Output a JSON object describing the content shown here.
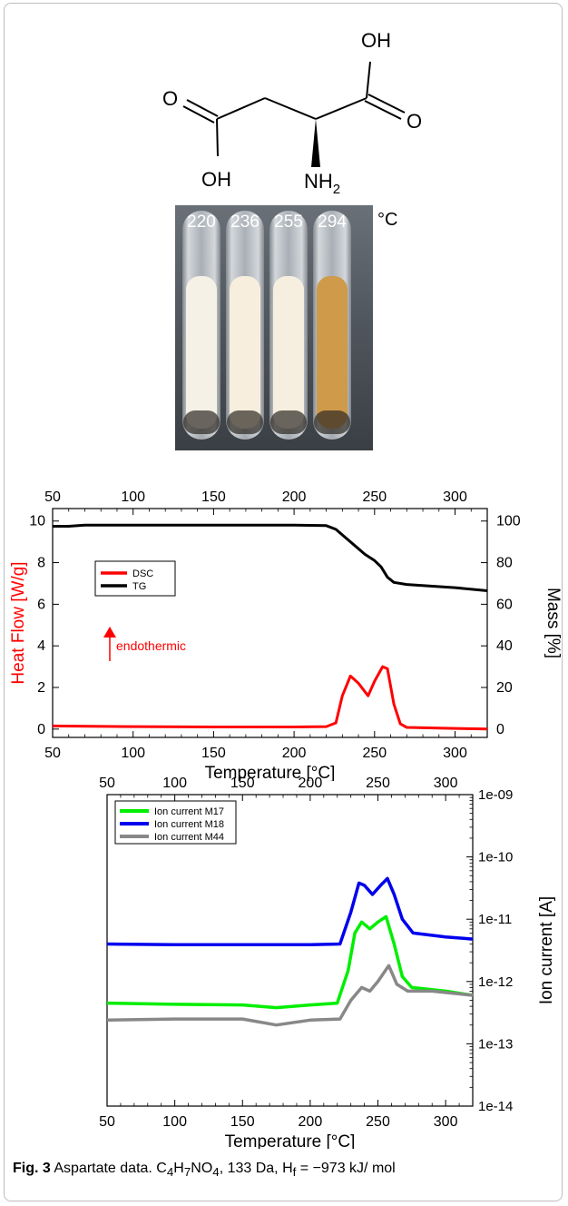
{
  "molecule": {
    "atoms": {
      "oh_top": "OH",
      "o_left": "O",
      "o_right": "O",
      "oh_bottom": "OH",
      "nh2": "NH",
      "nh2_sub": "2"
    }
  },
  "photo": {
    "temperatures": [
      "220",
      "236",
      "255",
      "294"
    ],
    "unit": "°C",
    "tube_colors": [
      "#f5f1e6",
      "#f7eedd",
      "#f6efe0",
      "#cf9a4a"
    ]
  },
  "chart_data": [
    {
      "type": "line",
      "x_top_ticks": [
        "50",
        "100",
        "150",
        "200",
        "250",
        "300"
      ],
      "x_bottom_ticks": [
        "50",
        "100",
        "150",
        "200",
        "250",
        "300"
      ],
      "y_left_ticks": [
        "0",
        "2",
        "4",
        "6",
        "8",
        "10"
      ],
      "y_right_ticks": [
        "0",
        "20",
        "40",
        "60",
        "80",
        "100"
      ],
      "xlim": [
        50,
        320
      ],
      "ylim_left": [
        -0.4,
        10.6
      ],
      "ylim_right": [
        -4,
        106
      ],
      "xlabel": "Temperature [°C]",
      "ylabel_left": "Heat Flow [W/g]",
      "ylabel_right": "Mass [%]",
      "legend_position": "top-left",
      "annotation": "endothermic",
      "series": [
        {
          "name": "DSC",
          "color": "#ff0000",
          "axis": "left",
          "points": [
            [
              50,
              0.15
            ],
            [
              100,
              0.12
            ],
            [
              150,
              0.1
            ],
            [
              200,
              0.1
            ],
            [
              220,
              0.12
            ],
            [
              226,
              0.3
            ],
            [
              230,
              1.6
            ],
            [
              235,
              2.55
            ],
            [
              240,
              2.2
            ],
            [
              246,
              1.6
            ],
            [
              250,
              2.3
            ],
            [
              255,
              3.0
            ],
            [
              258,
              2.9
            ],
            [
              262,
              1.2
            ],
            [
              266,
              0.25
            ],
            [
              270,
              0.08
            ],
            [
              300,
              0.03
            ],
            [
              320,
              0.0
            ]
          ]
        },
        {
          "name": "TG",
          "color": "#000000",
          "axis": "right",
          "points": [
            [
              50,
              97.5
            ],
            [
              60,
              97.5
            ],
            [
              70,
              98
            ],
            [
              150,
              98
            ],
            [
              200,
              98
            ],
            [
              220,
              97.8
            ],
            [
              226,
              96
            ],
            [
              232,
              92
            ],
            [
              238,
              88
            ],
            [
              244,
              84
            ],
            [
              250,
              81
            ],
            [
              254,
              78
            ],
            [
              258,
              73
            ],
            [
              262,
              70.5
            ],
            [
              270,
              69.5
            ],
            [
              300,
              68
            ],
            [
              320,
              66.5
            ]
          ]
        }
      ]
    },
    {
      "type": "line",
      "x_top_ticks": [
        "50",
        "100",
        "150",
        "200",
        "250",
        "300"
      ],
      "x_bottom_ticks": [
        "50",
        "100",
        "150",
        "200",
        "250",
        "300"
      ],
      "y_right_ticks": [
        "1e-09",
        "1e-10",
        "1e-11",
        "1e-12",
        "1e-13",
        "1e-14"
      ],
      "xlim": [
        50,
        320
      ],
      "ylim_log10": [
        -14,
        -9
      ],
      "xlabel": "Temperature [°C]",
      "ylabel_right": "Ion current [A]",
      "y_scale": "log",
      "legend_position": "top-left",
      "series": [
        {
          "name": "Ion current M17",
          "color": "#00ee00",
          "points": [
            [
              50,
              4.5e-13
            ],
            [
              100,
              4.3e-13
            ],
            [
              150,
              4.2e-13
            ],
            [
              175,
              3.8e-13
            ],
            [
              200,
              4.2e-13
            ],
            [
              220,
              4.5e-13
            ],
            [
              228,
              1.5e-12
            ],
            [
              233,
              6e-12
            ],
            [
              238,
              9e-12
            ],
            [
              244,
              7e-12
            ],
            [
              250,
              9e-12
            ],
            [
              256,
              1.1e-11
            ],
            [
              262,
              4e-12
            ],
            [
              268,
              1.2e-12
            ],
            [
              275,
              8e-13
            ],
            [
              300,
              7e-13
            ],
            [
              320,
              6e-13
            ]
          ]
        },
        {
          "name": "Ion current M18",
          "color": "#0000ee",
          "points": [
            [
              50,
              4e-12
            ],
            [
              100,
              3.9e-12
            ],
            [
              150,
              3.9e-12
            ],
            [
              200,
              3.9e-12
            ],
            [
              222,
              4e-12
            ],
            [
              230,
              1.3e-11
            ],
            [
              236,
              3.8e-11
            ],
            [
              240,
              3.5e-11
            ],
            [
              246,
              2.5e-11
            ],
            [
              252,
              3.5e-11
            ],
            [
              257,
              4.5e-11
            ],
            [
              262,
              2.5e-11
            ],
            [
              268,
              1e-11
            ],
            [
              276,
              6e-12
            ],
            [
              300,
              5.2e-12
            ],
            [
              320,
              4.8e-12
            ]
          ]
        },
        {
          "name": "Ion current M44",
          "color": "#888888",
          "points": [
            [
              50,
              2.4e-13
            ],
            [
              100,
              2.5e-13
            ],
            [
              150,
              2.5e-13
            ],
            [
              175,
              2e-13
            ],
            [
              200,
              2.4e-13
            ],
            [
              222,
              2.5e-13
            ],
            [
              230,
              5e-13
            ],
            [
              238,
              8e-13
            ],
            [
              244,
              7e-13
            ],
            [
              250,
              1e-12
            ],
            [
              258,
              1.8e-12
            ],
            [
              264,
              9e-13
            ],
            [
              272,
              7e-13
            ],
            [
              290,
              7e-13
            ],
            [
              320,
              6e-13
            ]
          ]
        }
      ]
    }
  ],
  "caption": {
    "fig_label": "Fig. 3",
    "text_parts": [
      " Aspartate data. C",
      "4",
      "H",
      "7",
      "NO",
      "4",
      ", 133 Da, H",
      "f",
      " = −973 kJ/ mol"
    ]
  }
}
